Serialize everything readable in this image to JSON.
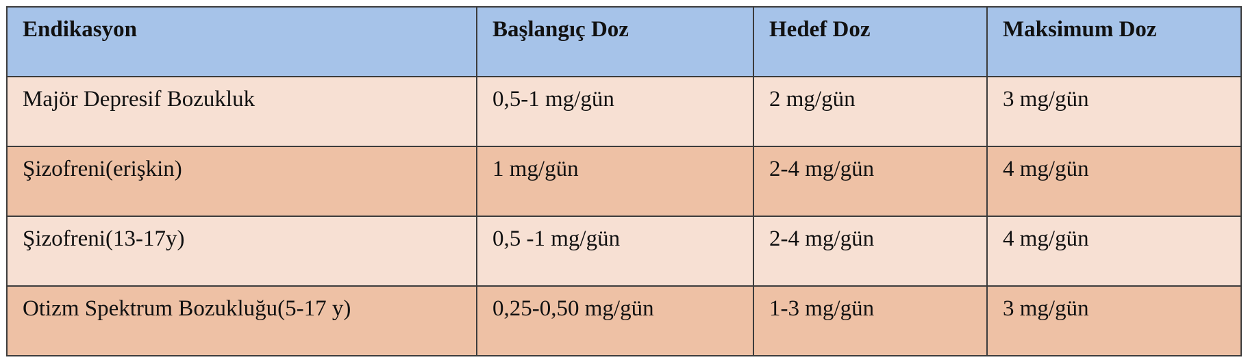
{
  "table": {
    "header": [
      "Endikasyon",
      "Başlangıç Doz",
      "Hedef Doz",
      "Maksimum Doz"
    ],
    "rows": [
      [
        "Majör Depresif Bozukluk",
        "0,5-1 mg/gün",
        "2 mg/gün",
        "3 mg/gün"
      ],
      [
        "Şizofreni(erişkin)",
        "1 mg/gün",
        "2-4 mg/gün",
        "4 mg/gün"
      ],
      [
        "Şizofreni(13-17y)",
        "0,5 -1 mg/gün",
        "2-4 mg/gün",
        "4 mg/gün"
      ],
      [
        "Otizm Spektrum Bozukluğu(5-17 y)",
        "0,25-0,50 mg/gün",
        "1-3 mg/gün",
        "3 mg/gün"
      ]
    ]
  }
}
